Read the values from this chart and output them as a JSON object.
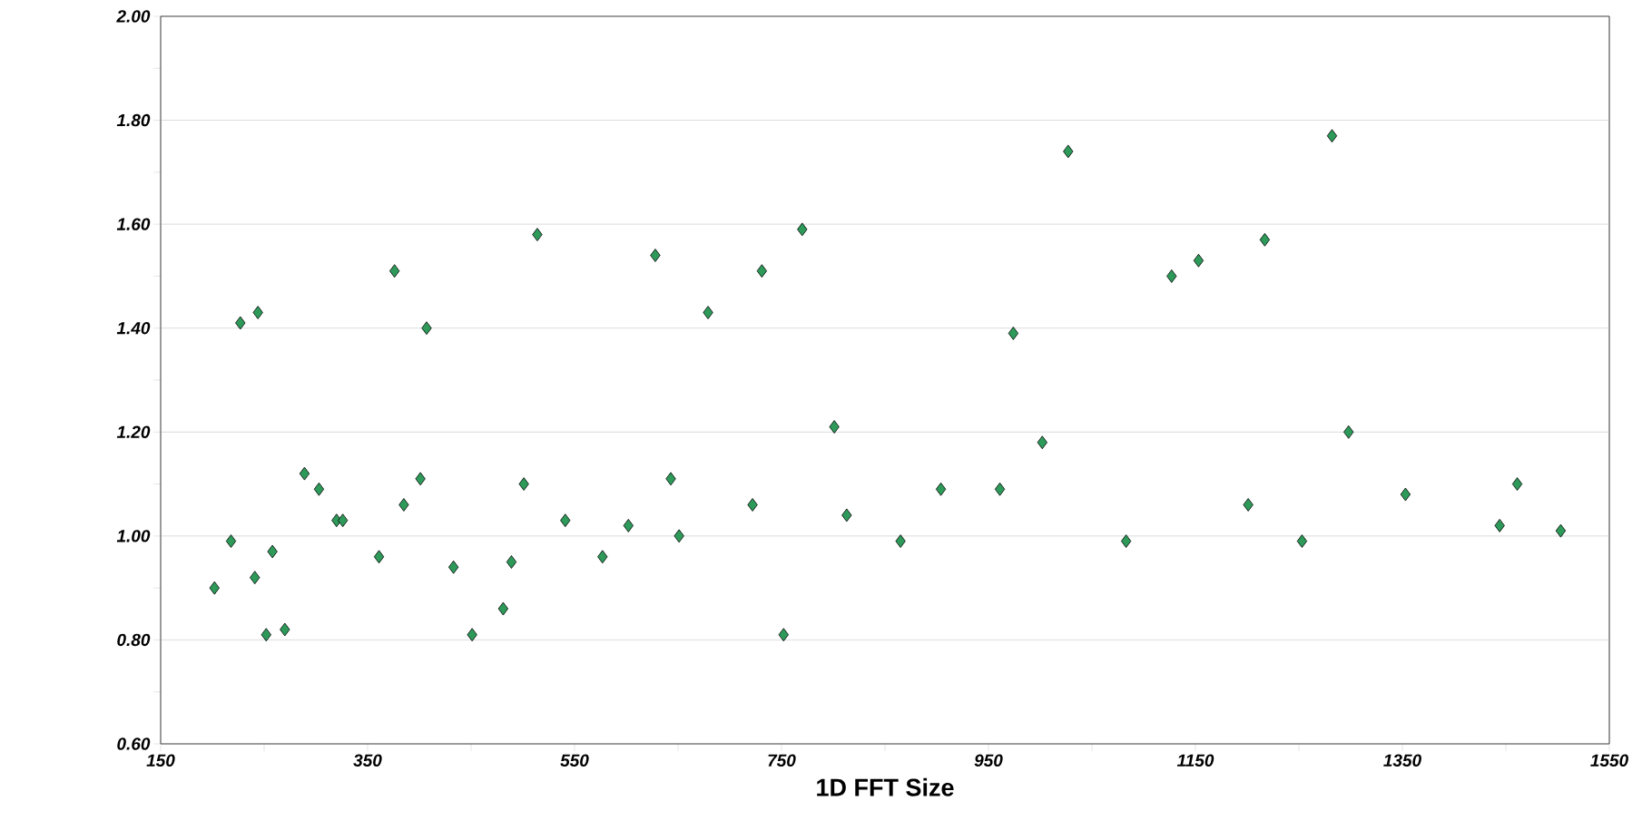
{
  "chart_data": {
    "type": "scatter",
    "xlabel": "1D FFT Size",
    "x": [
      202,
      218,
      227,
      241,
      244,
      252,
      258,
      270,
      289,
      303,
      320,
      326,
      361,
      376,
      385,
      401,
      407,
      433,
      451,
      481,
      489,
      501,
      514,
      541,
      577,
      602,
      628,
      643,
      651,
      679,
      722,
      731,
      752,
      770,
      801,
      813,
      865,
      904,
      961,
      974,
      1002,
      1027,
      1083,
      1127,
      1153,
      1201,
      1217,
      1253,
      1282,
      1298,
      1353,
      1444,
      1461,
      1503
    ],
    "series": [
      {
        "color": "#2e9a5a",
        "values": [
          0.9,
          0.99,
          1.41,
          0.92,
          1.43,
          0.81,
          0.97,
          0.82,
          1.12,
          1.09,
          1.03,
          1.03,
          0.96,
          1.51,
          1.06,
          1.11,
          1.4,
          0.94,
          0.81,
          0.86,
          0.95,
          1.1,
          1.58,
          1.03,
          0.96,
          1.02,
          1.54,
          1.11,
          1.0,
          1.43,
          1.06,
          1.51,
          0.81,
          1.59,
          1.21,
          1.04,
          0.99,
          1.09,
          1.09,
          1.39,
          1.18,
          1.74,
          0.99,
          1.5,
          1.53,
          1.06,
          1.57,
          0.99,
          1.77,
          1.2,
          1.08,
          1.02,
          1.1,
          1.01
        ]
      }
    ],
    "xlim": [
      150,
      1550
    ],
    "xticks": [
      150,
      {
        "value": 250,
        "label": null
      },
      350,
      {
        "value": 450,
        "label": null
      },
      550,
      {
        "value": 650,
        "label": null
      },
      750,
      {
        "value": 850,
        "label": null
      },
      950,
      {
        "value": 1050,
        "label": null
      },
      1150,
      {
        "value": 1250,
        "label": null
      },
      1350,
      {
        "value": 1450,
        "label": null
      },
      1550
    ],
    "ylim": [
      0.6,
      2.0
    ],
    "yticks": [
      {
        "value": 0.6,
        "label": "0.60"
      },
      {
        "value": 0.7,
        "label": null
      },
      {
        "value": 0.8,
        "label": "0.80"
      },
      {
        "value": 0.9,
        "label": null
      },
      {
        "value": 1.0,
        "label": "1.00"
      },
      {
        "value": 1.1,
        "label": null
      },
      {
        "value": 1.2,
        "label": "1.20"
      },
      {
        "value": 1.3,
        "label": null
      },
      {
        "value": 1.4,
        "label": "1.40"
      },
      {
        "value": 1.5,
        "label": null
      },
      {
        "value": 1.6,
        "label": "1.60"
      },
      {
        "value": 1.7,
        "label": null
      },
      {
        "value": 1.8,
        "label": "1.80"
      },
      {
        "value": 1.9,
        "label": null
      },
      {
        "value": 2.0,
        "label": "2.00"
      }
    ],
    "grid": "y",
    "marker": "diamond"
  }
}
